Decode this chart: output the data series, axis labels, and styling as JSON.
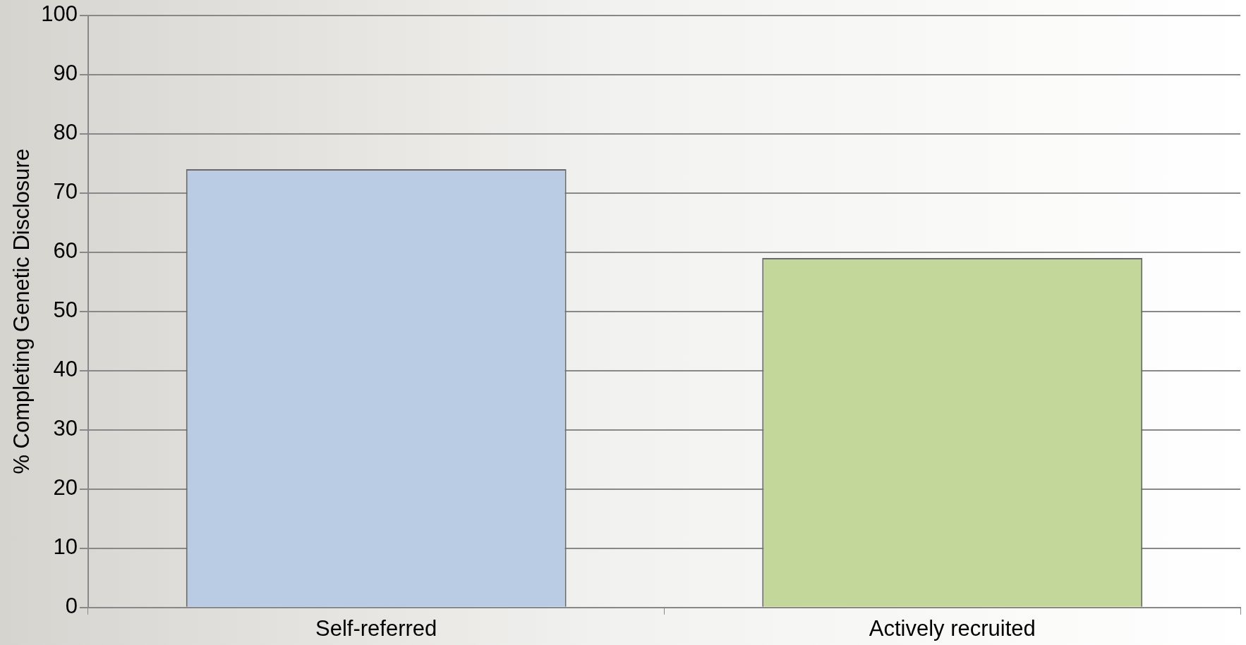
{
  "chart_data": {
    "type": "bar",
    "ylabel": "% Completing Genetic Disclosure",
    "categories": [
      "Self-referred",
      "Actively recruited"
    ],
    "values": [
      74,
      59
    ],
    "colors": [
      "#b9cce4",
      "#c4d79b"
    ],
    "ylim": [
      0,
      100
    ],
    "yticks": [
      0,
      10,
      20,
      30,
      40,
      50,
      60,
      70,
      80,
      90,
      100
    ],
    "grid": "y",
    "legend": false
  }
}
